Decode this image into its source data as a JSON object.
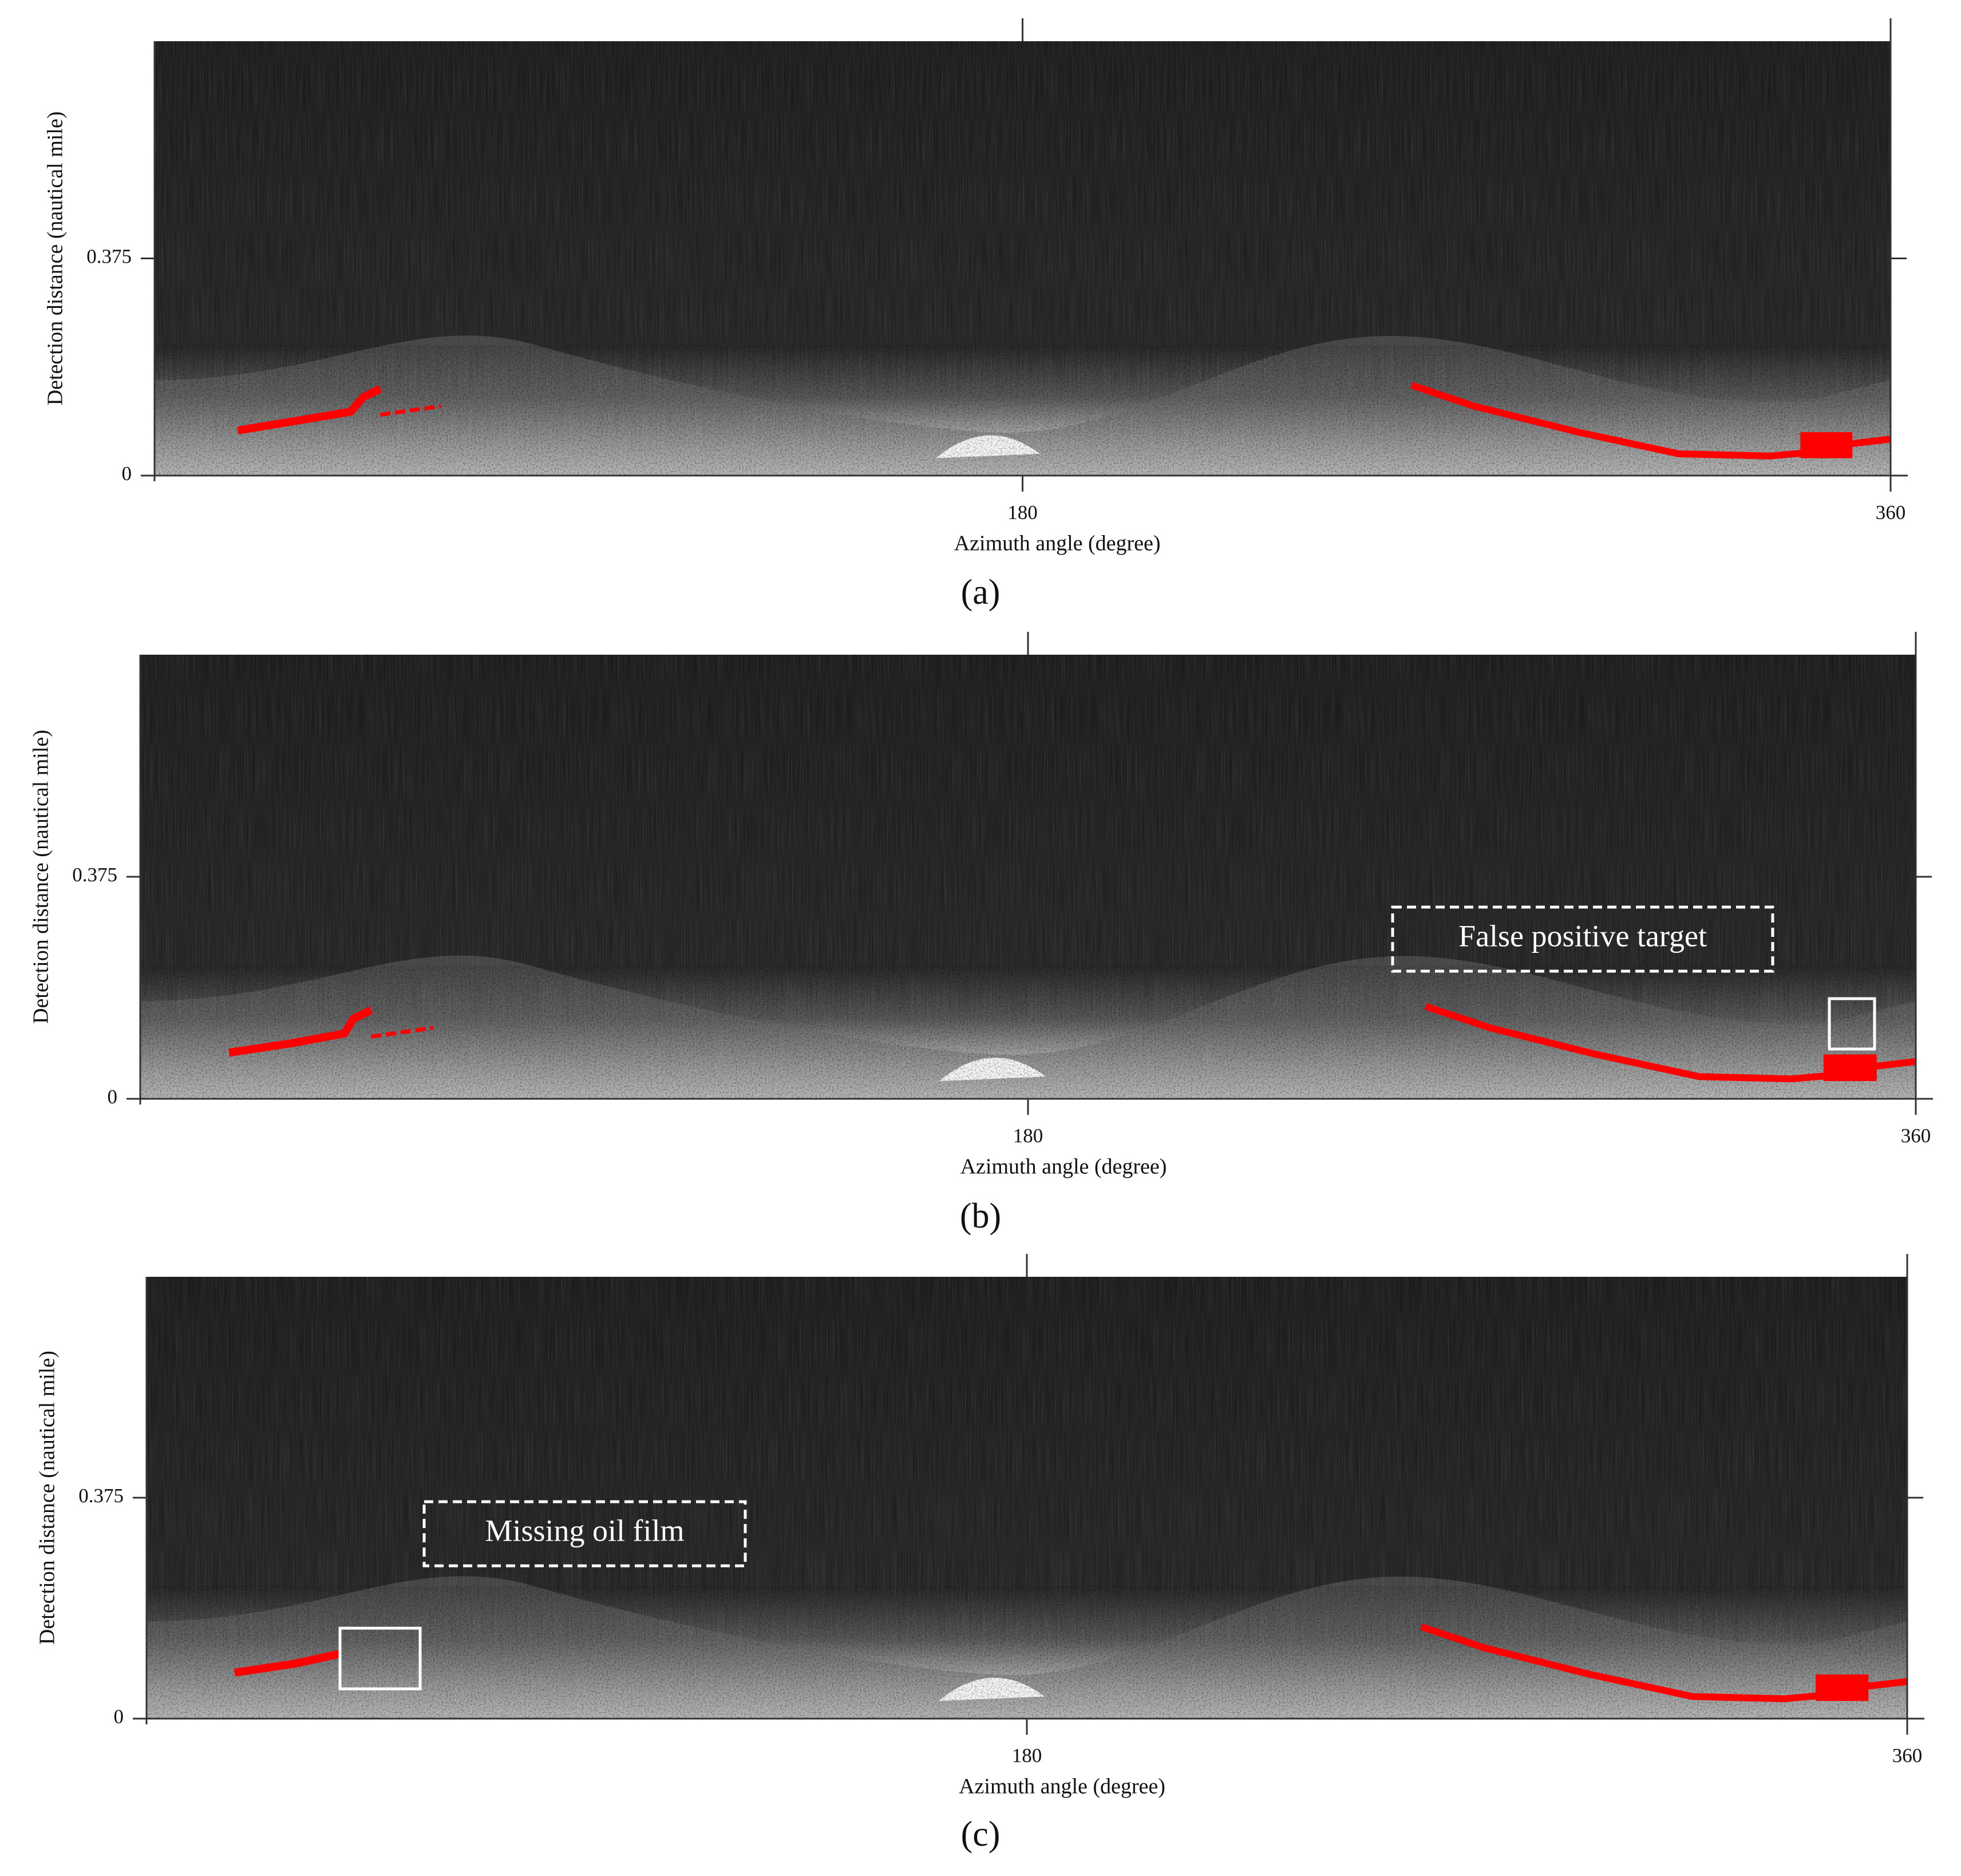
{
  "chart_data": [
    {
      "type": "image",
      "panel_label": "(a)",
      "x_label": "Azimuth angle (degree)",
      "y_label": "Detection distance (nautical mile)",
      "xlim": [
        0,
        360
      ],
      "xticks": [
        180,
        360
      ],
      "ylim": [
        0,
        0.75
      ],
      "yticks": [
        0,
        0.375
      ]
    },
    {
      "type": "image",
      "panel_label": "(b)",
      "x_label": "Azimuth angle (degree)",
      "y_label": "Detection distance (nautical mile)",
      "xlim": [
        0,
        360
      ],
      "xticks": [
        180,
        360
      ],
      "ylim": [
        0,
        0.75
      ],
      "yticks": [
        0,
        0.375
      ],
      "annotations": [
        "False positive target"
      ]
    },
    {
      "type": "image",
      "panel_label": "(c)",
      "x_label": "Azimuth angle (degree)",
      "y_label": "Detection distance (nautical mile)",
      "xlim": [
        0,
        360
      ],
      "xticks": [
        180,
        360
      ],
      "ylim": [
        0,
        0.75
      ],
      "yticks": [
        0,
        0.375
      ],
      "annotations": [
        "Missing oil film"
      ]
    }
  ]
}
